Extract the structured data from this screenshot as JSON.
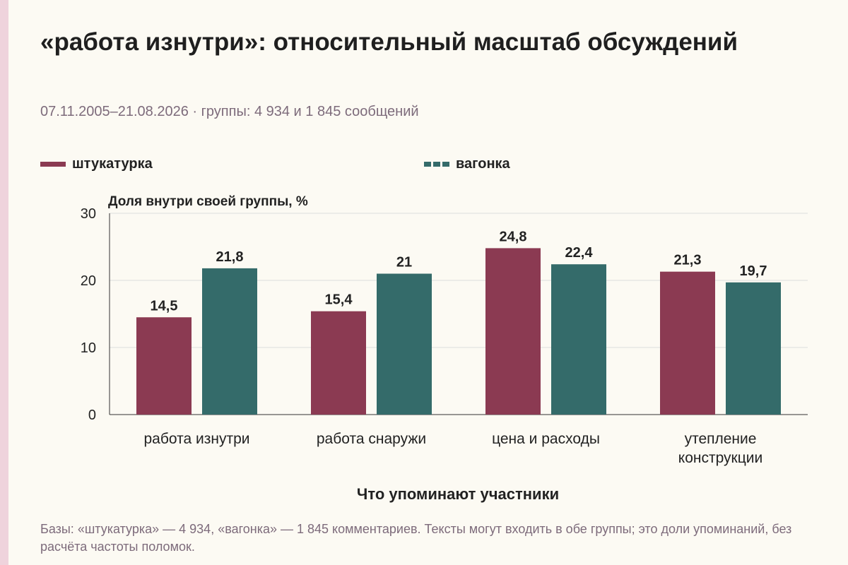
{
  "page": {
    "title": "«работа изнутри»: относительный масштаб обсуждений",
    "subtitle": "07.11.2005–21.08.2026 · группы: 4 934 и 1 845 сообщений",
    "footnote": "Базы: «штукатурка» — 4 934, «вагонка» — 1 845 комментариев. Тексты могут входить в обе группы; это доли упоминаний, без расчёта частоты поломок."
  },
  "colors": {
    "background": "#fcfaf3",
    "edge_accent": "#efd3dc",
    "subtle_text": "#7d6b7b"
  },
  "chart_data": {
    "type": "bar",
    "title": "«работа изнутри»: относительный масштаб обсуждений",
    "subtitle": "07.11.2005–21.08.2026 · группы: 4 934 и 1 845 сообщений",
    "xlabel": "Что упоминают участники",
    "ylabel": "Доля внутри своей группы, %",
    "ylim": [
      0,
      30
    ],
    "yticks": [
      0,
      10,
      20,
      30
    ],
    "grid": true,
    "legend_position": "top",
    "categories": [
      [
        "работа изнутри"
      ],
      [
        "работа снаружи"
      ],
      [
        "цена и расходы"
      ],
      [
        "утепление",
        "конструкции"
      ]
    ],
    "series": [
      {
        "name": "штукатурка",
        "color": "#8b3a52",
        "values": [
          14.5,
          15.4,
          24.8,
          21.3
        ],
        "labels": [
          "14,5",
          "15,4",
          "24,8",
          "21,3"
        ]
      },
      {
        "name": "вагонка",
        "color": "#346b6a",
        "values": [
          21.8,
          21,
          22.4,
          19.7
        ],
        "labels": [
          "21,8",
          "21",
          "22,4",
          "19,7"
        ]
      }
    ]
  }
}
